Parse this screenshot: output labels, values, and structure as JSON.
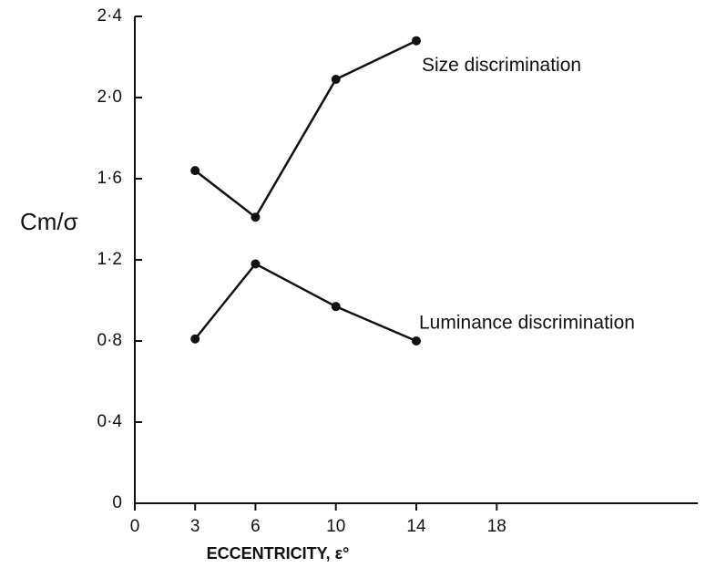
{
  "chart_data": {
    "type": "line",
    "x_label": "ECCENTRICITY, ε°",
    "y_label": "Cm/σ",
    "series": [
      {
        "name": "Size discrimination",
        "color": "#111111",
        "x": [
          3,
          6,
          10,
          14
        ],
        "values": [
          1.64,
          1.41,
          2.09,
          2.28
        ]
      },
      {
        "name": "Luminance discrimination",
        "color": "#111111",
        "x": [
          3,
          6,
          10,
          14
        ],
        "values": [
          0.81,
          1.18,
          0.97,
          0.8
        ]
      }
    ],
    "xlim": [
      0,
      28
    ],
    "xticks": [
      0,
      3,
      6,
      10,
      14,
      18
    ],
    "ylim": [
      0,
      2.4
    ],
    "yticks": [
      0,
      {
        "value": 0.4,
        "label": "0·4"
      },
      {
        "value": 0.8,
        "label": "0·8"
      },
      {
        "value": 1.2,
        "label": "1·2"
      },
      {
        "value": 1.6,
        "label": "1·6"
      },
      {
        "value": 2.0,
        "label": "2·0"
      },
      {
        "value": 2.4,
        "label": "2·4"
      }
    ],
    "grid": false
  }
}
